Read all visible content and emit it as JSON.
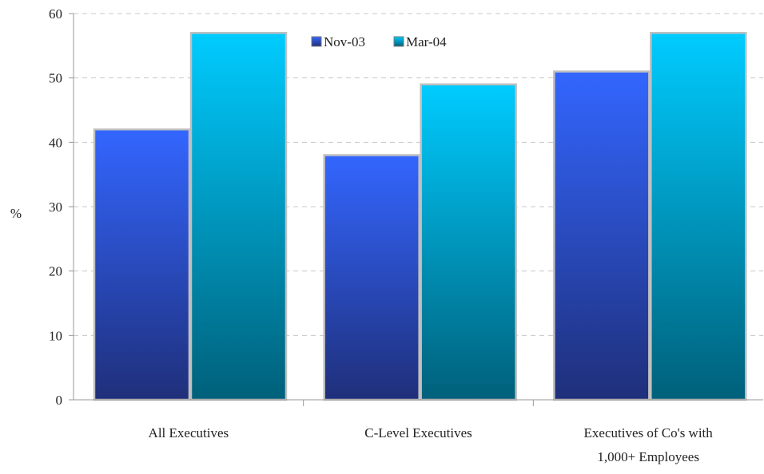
{
  "chart_data": {
    "type": "bar",
    "categories": [
      "All Executives",
      "C-Level Executives",
      "Executives of Co's with 1,000+ Employees"
    ],
    "category_label_lines": [
      [
        "All Executives"
      ],
      [
        "C-Level Executives"
      ],
      [
        "Executives of Co's with",
        "1,000+ Employees"
      ]
    ],
    "series": [
      {
        "name": "Nov-03",
        "values": [
          42,
          38,
          51
        ],
        "color_top": "#3366ff",
        "color_bottom": "#1f2f7a"
      },
      {
        "name": "Mar-04",
        "values": [
          57,
          49,
          57
        ],
        "color_top": "#00ccff",
        "color_bottom": "#00607a"
      }
    ],
    "ylabel": "%",
    "ylim": [
      0,
      60
    ],
    "yticks": [
      0,
      10,
      20,
      30,
      40,
      50,
      60
    ],
    "grid": true,
    "legend_position": "top-center"
  }
}
